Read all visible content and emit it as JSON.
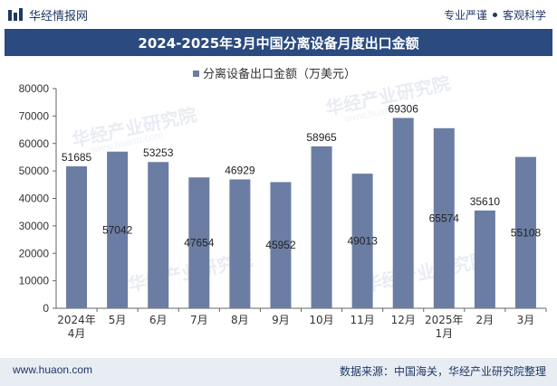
{
  "header": {
    "brand_name": "华经情报网",
    "tags": [
      "专业严谨",
      "客观科学"
    ]
  },
  "colors": {
    "bar": "#6b7da3",
    "title_bg": "#2a4a80",
    "brand": "#1f3864",
    "footer_bg": "#e8edf4"
  },
  "watermark": {
    "text": "华经产业研究院",
    "url": "www.huaon.com"
  },
  "chart_data": {
    "type": "bar",
    "title": "2024-2025年3月中国分离设备月度出口金额",
    "legend": "分离设备出口金额（万美元）",
    "legend_position": "top-center",
    "categories": [
      "2024年\n4月",
      "5月",
      "6月",
      "7月",
      "8月",
      "9月",
      "10月",
      "11月",
      "12月",
      "2025年\n1月",
      "2月",
      "3月"
    ],
    "series": [
      {
        "name": "分离设备出口金额（万美元）",
        "values": [
          51685,
          57042,
          53253,
          47654,
          46929,
          45952,
          58965,
          49013,
          69306,
          65574,
          35610,
          55108
        ]
      }
    ],
    "ylim": [
      0,
      80000
    ],
    "yticks": [
      0,
      10000,
      20000,
      30000,
      40000,
      50000,
      60000,
      70000,
      80000
    ],
    "label_inside": [
      false,
      true,
      false,
      true,
      false,
      true,
      false,
      true,
      false,
      true,
      false,
      true
    ],
    "grid": false
  },
  "footer": {
    "url": "www.huaon.com",
    "source": "数据来源：中国海关，华经产业研究院整理"
  }
}
